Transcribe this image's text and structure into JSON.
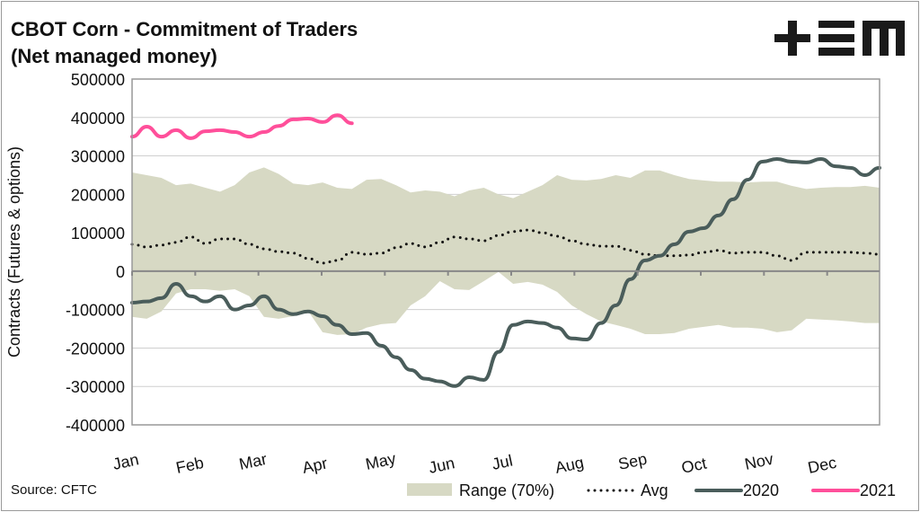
{
  "chart_data": {
    "type": "line",
    "title": "CBOT Corn - Commitment of Traders",
    "subtitle": "(Net managed money)",
    "ylabel": "Contracts (Futures & options)",
    "xlabel": "",
    "source": "Source: CFTC",
    "ylim": [
      -400000,
      500000
    ],
    "yticks": [
      500000,
      400000,
      300000,
      200000,
      100000,
      0,
      -100000,
      -200000,
      -300000,
      -400000
    ],
    "xticks": [
      "Jan",
      "Feb",
      "Mar",
      "Apr",
      "May",
      "Jun",
      "Jul",
      "Aug",
      "Sep",
      "Oct",
      "Nov",
      "Dec"
    ],
    "x_unit": "week of year",
    "grid": true,
    "legend_placement": "bottom-right",
    "colors": {
      "range": "#d7d9c4",
      "avg": "#111111",
      "2020": "#4a5d5b",
      "2021": "#ff4f9a"
    },
    "range": {
      "name": "Range (70%)",
      "upper": [
        257000,
        250000,
        243000,
        224000,
        228000,
        217000,
        207000,
        224000,
        257000,
        270000,
        253000,
        228000,
        224000,
        231000,
        217000,
        214000,
        238000,
        240000,
        224000,
        205000,
        210000,
        207000,
        195000,
        210000,
        217000,
        200000,
        190000,
        207000,
        224000,
        250000,
        238000,
        236000,
        240000,
        250000,
        243000,
        262000,
        262000,
        250000,
        240000,
        236000,
        233000,
        233000,
        231000,
        233000,
        233000,
        222000,
        214000,
        217000,
        219000,
        219000,
        222000,
        217000
      ],
      "lower": [
        -119000,
        -124000,
        -105000,
        -58000,
        -47000,
        -47000,
        -51000,
        -47000,
        -65000,
        -119000,
        -124000,
        -117000,
        -103000,
        -159000,
        -166000,
        -164000,
        -147000,
        -138000,
        -135000,
        -89000,
        -65000,
        -26000,
        -47000,
        -49000,
        -26000,
        -2000,
        -33000,
        -28000,
        -35000,
        -54000,
        -89000,
        -112000,
        -131000,
        -140000,
        -150000,
        -164000,
        -164000,
        -161000,
        -150000,
        -145000,
        -140000,
        -147000,
        -147000,
        -150000,
        -159000,
        -154000,
        -124000,
        -126000,
        -128000,
        -131000,
        -135000,
        -135000
      ]
    },
    "series": [
      {
        "name": "Avg",
        "values": [
          70000,
          63000,
          68000,
          75000,
          89000,
          72000,
          84000,
          84000,
          70000,
          58000,
          51000,
          47000,
          33000,
          21000,
          28000,
          49000,
          44000,
          47000,
          61000,
          72000,
          63000,
          75000,
          89000,
          84000,
          79000,
          93000,
          103000,
          107000,
          100000,
          91000,
          79000,
          70000,
          65000,
          65000,
          54000,
          44000,
          40000,
          40000,
          42000,
          49000,
          54000,
          47000,
          49000,
          49000,
          40000,
          28000,
          49000,
          49000,
          49000,
          49000,
          47000,
          44000
        ]
      },
      {
        "name": "2020",
        "values": [
          -82000,
          -79000,
          -70000,
          -33000,
          -65000,
          -79000,
          -65000,
          -100000,
          -89000,
          -65000,
          -100000,
          -112000,
          -105000,
          -117000,
          -140000,
          -164000,
          -161000,
          -194000,
          -224000,
          -257000,
          -280000,
          -287000,
          -299000,
          -276000,
          -283000,
          -210000,
          -140000,
          -131000,
          -135000,
          -147000,
          -175000,
          -178000,
          -135000,
          -89000,
          -21000,
          28000,
          40000,
          70000,
          103000,
          112000,
          145000,
          187000,
          238000,
          285000,
          292000,
          285000,
          283000,
          292000,
          273000,
          269000,
          250000,
          269000
        ]
      },
      {
        "name": "2021",
        "values": [
          350000,
          376000,
          350000,
          367000,
          346000,
          364000,
          367000,
          362000,
          350000,
          362000,
          378000,
          395000,
          397000,
          388000,
          406000,
          385000
        ]
      }
    ]
  },
  "logo": {
    "text": "+EM"
  }
}
